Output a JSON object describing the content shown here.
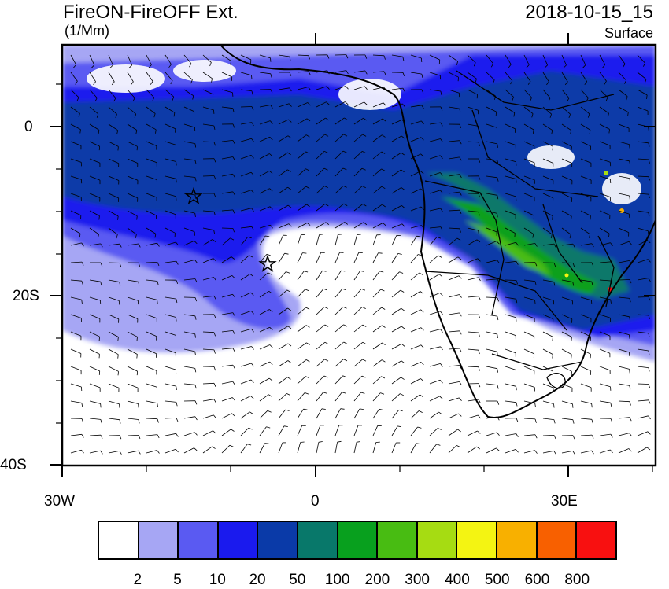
{
  "header": {
    "title": "FireON-FireOFF Ext.",
    "units": "(1/Mm)",
    "datetime": "2018-10-15_15",
    "level": "Surface"
  },
  "axes": {
    "x_labels": [
      "30W",
      "0",
      "30E"
    ],
    "y_labels": [
      "0",
      "20S",
      "40S"
    ]
  },
  "colorbar": {
    "colors": [
      "#ffffff",
      "#a6a6f4",
      "#5a5af2",
      "#1a1aee",
      "#0a3aa8",
      "#08786a",
      "#08a01e",
      "#48bc12",
      "#a6dc12",
      "#f4f412",
      "#f8b000",
      "#f86000",
      "#f81010"
    ],
    "labels": [
      "2",
      "5",
      "10",
      "20",
      "50",
      "100",
      "200",
      "300",
      "400",
      "500",
      "600",
      "800"
    ]
  },
  "map": {
    "markers": [
      "star-marker",
      "star-marker"
    ]
  }
}
